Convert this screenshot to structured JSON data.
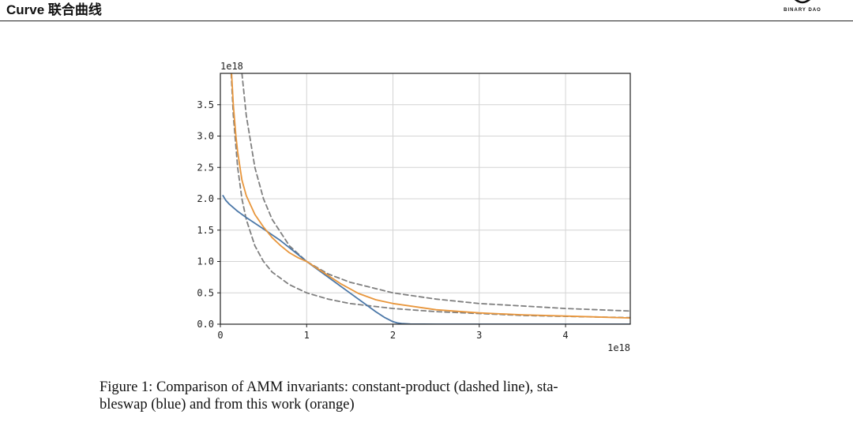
{
  "header": {
    "title": "Curve 联合曲线",
    "logo_text": "BINARY DAO"
  },
  "caption": {
    "line1": "Figure 1: Comparison of AMM invariants: constant-product (dashed line), sta-",
    "line2": "bleswap (blue) and from this work (orange)"
  },
  "chart_data": {
    "type": "line",
    "title": "",
    "xlabel": "",
    "ylabel": "",
    "x_offset_label": "1e18",
    "y_offset_label": "1e18",
    "xlim": [
      0,
      4.75
    ],
    "ylim": [
      0,
      4.0
    ],
    "xticks": [
      0,
      1,
      2,
      3,
      4
    ],
    "xtick_labels": [
      "0",
      "1",
      "2",
      "3",
      "4"
    ],
    "yticks": [
      0,
      0.5,
      1.0,
      1.5,
      2.0,
      2.5,
      3.0,
      3.5
    ],
    "ytick_labels": [
      "0.0",
      "0.5",
      "1.0",
      "1.5",
      "2.0",
      "2.5",
      "3.0",
      "3.5"
    ],
    "grid": true,
    "series": [
      {
        "color": "#7f7f7f",
        "style": "dashed",
        "x": [
          0.125,
          0.15,
          0.2,
          0.25,
          0.3,
          0.4,
          0.5,
          0.6,
          0.8,
          1.0,
          1.25,
          1.5,
          2.0,
          2.5,
          3.0,
          3.5,
          4.0,
          4.75
        ],
        "values": [
          4.0,
          3.33,
          2.5,
          2.0,
          1.67,
          1.25,
          1.0,
          0.83,
          0.63,
          0.5,
          0.4,
          0.33,
          0.25,
          0.2,
          0.17,
          0.14,
          0.125,
          0.105
        ]
      },
      {
        "color": "#7f7f7f",
        "style": "dashed",
        "x": [
          0.25,
          0.3,
          0.4,
          0.5,
          0.6,
          0.8,
          1.0,
          1.25,
          1.5,
          2.0,
          2.5,
          3.0,
          3.5,
          4.0,
          4.75
        ],
        "values": [
          4.0,
          3.33,
          2.5,
          2.0,
          1.67,
          1.25,
          1.0,
          0.8,
          0.67,
          0.5,
          0.4,
          0.33,
          0.29,
          0.25,
          0.21
        ]
      },
      {
        "color": "#4c78a8",
        "style": "solid",
        "x": [
          0.03,
          0.06,
          0.1,
          0.2,
          0.3,
          0.5,
          0.7,
          1.0,
          1.3,
          1.5,
          1.7,
          1.8,
          1.9,
          2.0,
          2.05,
          2.1,
          2.2,
          2.5,
          3.0,
          4.0,
          4.75
        ],
        "values": [
          2.05,
          1.98,
          1.92,
          1.8,
          1.7,
          1.52,
          1.33,
          1.0,
          0.7,
          0.5,
          0.3,
          0.2,
          0.11,
          0.04,
          0.02,
          0.01,
          0.003,
          0.0,
          0.0,
          0.0,
          0.0
        ]
      },
      {
        "color": "#e8963c",
        "style": "solid",
        "x": [
          0.13,
          0.15,
          0.18,
          0.2,
          0.25,
          0.3,
          0.4,
          0.5,
          0.6,
          0.7,
          0.8,
          0.9,
          1.0,
          1.2,
          1.4,
          1.6,
          1.8,
          2.0,
          2.5,
          3.0,
          3.5,
          4.0,
          4.75
        ],
        "values": [
          4.0,
          3.5,
          3.0,
          2.75,
          2.3,
          2.05,
          1.75,
          1.55,
          1.38,
          1.25,
          1.14,
          1.06,
          1.0,
          0.82,
          0.64,
          0.49,
          0.39,
          0.33,
          0.23,
          0.18,
          0.15,
          0.13,
          0.1
        ]
      }
    ]
  }
}
